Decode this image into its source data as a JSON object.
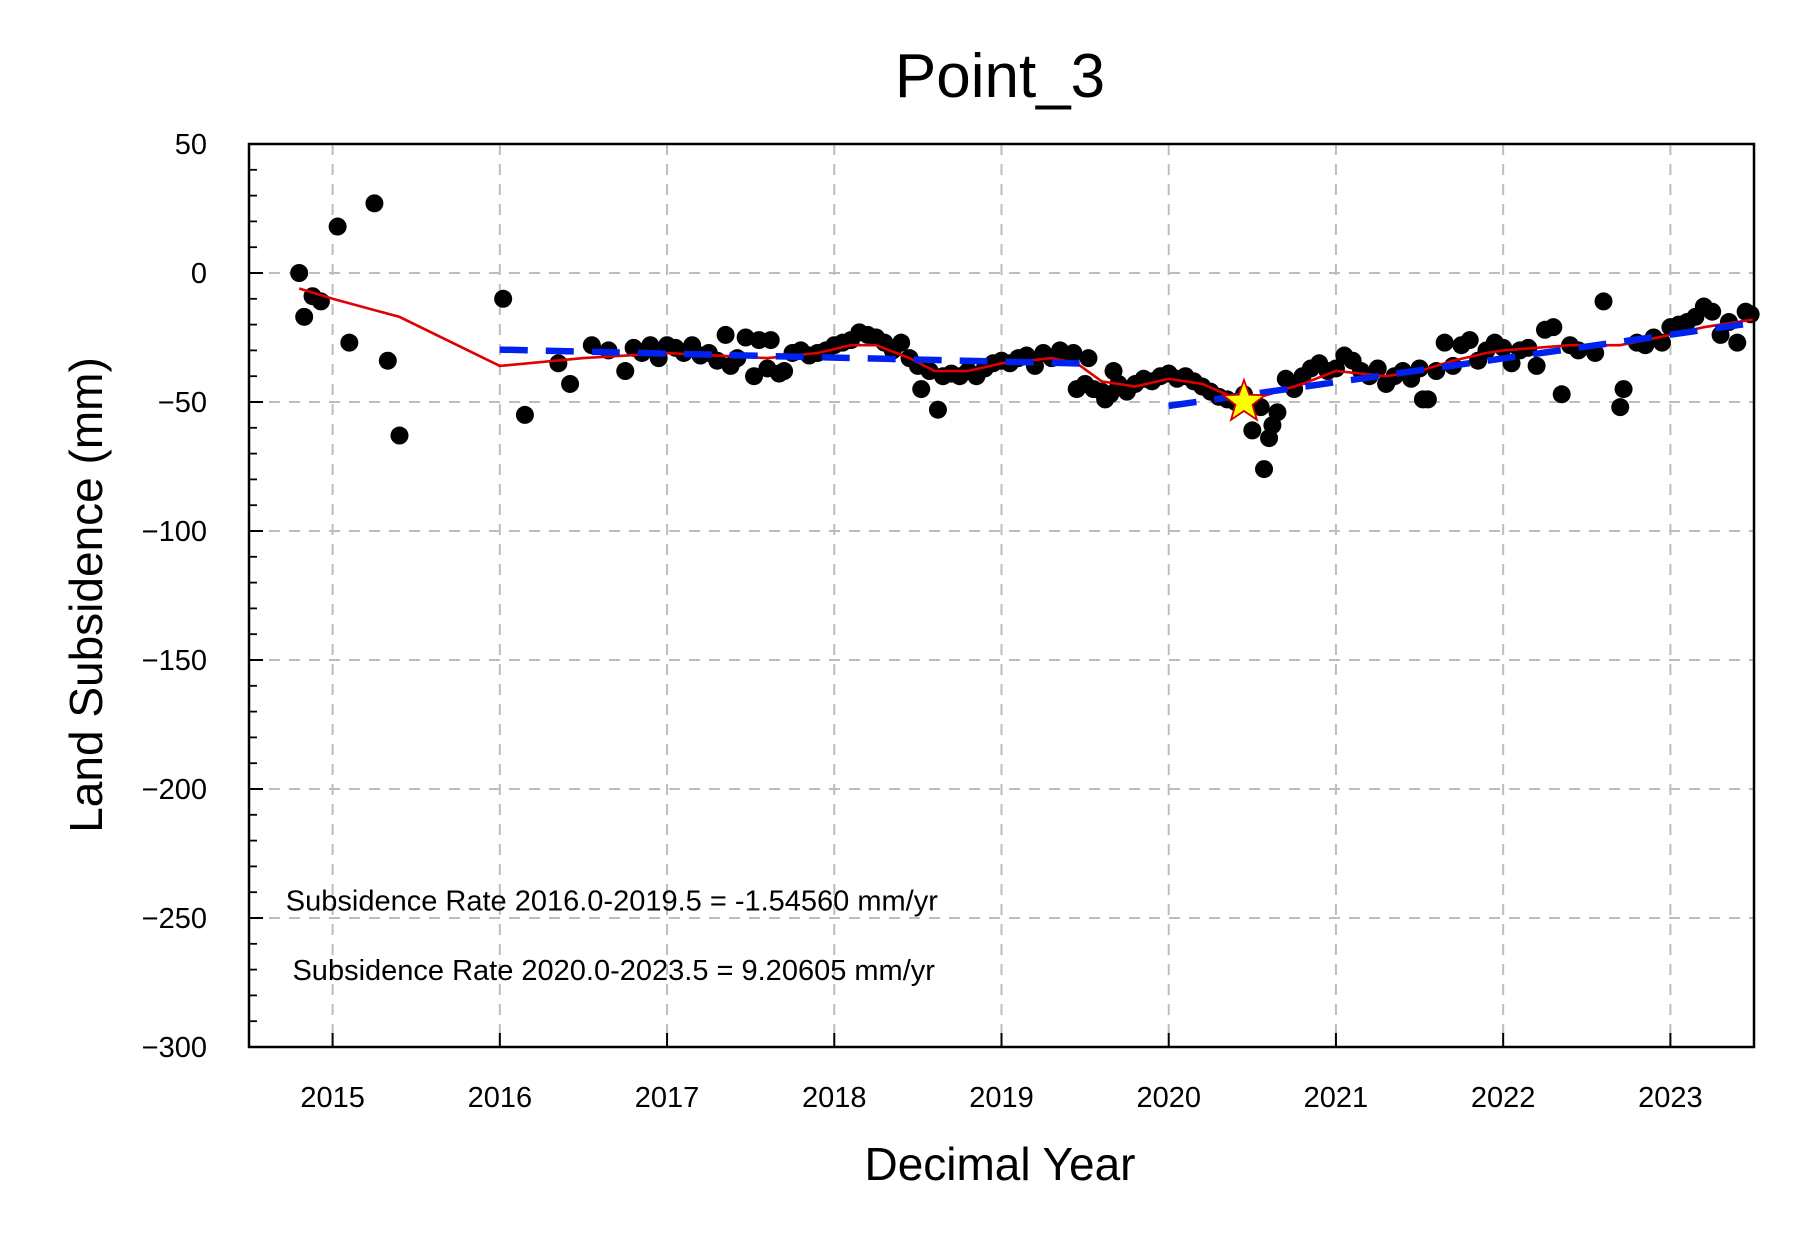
{
  "chart_data": {
    "type": "scatter",
    "title": "Point_3",
    "xlabel": "Decimal Year",
    "ylabel": "Land Subsidence (mm)",
    "xlim": [
      2014.5,
      2023.5
    ],
    "ylim": [
      -300,
      50
    ],
    "x_ticks": [
      {
        "value": 2015,
        "label": "2015"
      },
      {
        "value": 2016,
        "label": "2016"
      },
      {
        "value": 2017,
        "label": "2017"
      },
      {
        "value": 2018,
        "label": "2018"
      },
      {
        "value": 2019,
        "label": "2019"
      },
      {
        "value": 2020,
        "label": "2020"
      },
      {
        "value": 2021,
        "label": "2021"
      },
      {
        "value": 2022,
        "label": "2022"
      },
      {
        "value": 2023,
        "label": "2023"
      }
    ],
    "y_ticks": [
      {
        "value": 50,
        "label": "50"
      },
      {
        "value": 0,
        "label": "0"
      },
      {
        "value": -50,
        "label": "−50"
      },
      {
        "value": -100,
        "label": "−100"
      },
      {
        "value": -150,
        "label": "−150"
      },
      {
        "value": -200,
        "label": "−200"
      },
      {
        "value": -250,
        "label": "−250"
      },
      {
        "value": -300,
        "label": "−300"
      }
    ],
    "y_minor_step": 10,
    "grid": true,
    "colors": {
      "points": "#000000",
      "smooth": "#e00000",
      "trend": "#0022ee",
      "star_fill": "#ffff00",
      "star_stroke": "#d00000"
    },
    "series": [
      {
        "kind": "points",
        "points": [
          [
            2014.8,
            0
          ],
          [
            2014.83,
            -17
          ],
          [
            2014.88,
            -9
          ],
          [
            2014.93,
            -11
          ],
          [
            2015.03,
            18
          ],
          [
            2015.1,
            -27
          ],
          [
            2015.25,
            27
          ],
          [
            2015.33,
            -34
          ],
          [
            2015.4,
            -63
          ],
          [
            2016.02,
            -10
          ],
          [
            2016.15,
            -55
          ],
          [
            2016.35,
            -35
          ],
          [
            2016.42,
            -43
          ],
          [
            2016.55,
            -28
          ],
          [
            2016.65,
            -30
          ],
          [
            2016.75,
            -38
          ],
          [
            2016.8,
            -29
          ],
          [
            2016.85,
            -31
          ],
          [
            2016.9,
            -28
          ],
          [
            2016.95,
            -33
          ],
          [
            2017.0,
            -28
          ],
          [
            2017.05,
            -29
          ],
          [
            2017.1,
            -31
          ],
          [
            2017.15,
            -28
          ],
          [
            2017.2,
            -32
          ],
          [
            2017.25,
            -31
          ],
          [
            2017.3,
            -34
          ],
          [
            2017.35,
            -24
          ],
          [
            2017.38,
            -36
          ],
          [
            2017.42,
            -33
          ],
          [
            2017.47,
            -25
          ],
          [
            2017.52,
            -40
          ],
          [
            2017.55,
            -26
          ],
          [
            2017.6,
            -37
          ],
          [
            2017.62,
            -26
          ],
          [
            2017.67,
            -39
          ],
          [
            2017.7,
            -38
          ],
          [
            2017.75,
            -31
          ],
          [
            2017.8,
            -30
          ],
          [
            2017.85,
            -32
          ],
          [
            2017.9,
            -31
          ],
          [
            2017.95,
            -30
          ],
          [
            2018.0,
            -28
          ],
          [
            2018.05,
            -27
          ],
          [
            2018.1,
            -26
          ],
          [
            2018.15,
            -23
          ],
          [
            2018.2,
            -24
          ],
          [
            2018.25,
            -25
          ],
          [
            2018.3,
            -27
          ],
          [
            2018.35,
            -30
          ],
          [
            2018.4,
            -27
          ],
          [
            2018.45,
            -33
          ],
          [
            2018.5,
            -36
          ],
          [
            2018.52,
            -45
          ],
          [
            2018.57,
            -38
          ],
          [
            2018.62,
            -53
          ],
          [
            2018.65,
            -40
          ],
          [
            2018.7,
            -39
          ],
          [
            2018.75,
            -40
          ],
          [
            2018.8,
            -38
          ],
          [
            2018.85,
            -40
          ],
          [
            2018.9,
            -37
          ],
          [
            2018.95,
            -35
          ],
          [
            2019.0,
            -34
          ],
          [
            2019.05,
            -35
          ],
          [
            2019.1,
            -33
          ],
          [
            2019.15,
            -32
          ],
          [
            2019.2,
            -36
          ],
          [
            2019.25,
            -31
          ],
          [
            2019.3,
            -33
          ],
          [
            2019.35,
            -30
          ],
          [
            2019.4,
            -32
          ],
          [
            2019.43,
            -31
          ],
          [
            2019.45,
            -45
          ],
          [
            2019.5,
            -43
          ],
          [
            2019.52,
            -33
          ],
          [
            2019.55,
            -45
          ],
          [
            2019.6,
            -46
          ],
          [
            2019.62,
            -49
          ],
          [
            2019.65,
            -47
          ],
          [
            2019.67,
            -38
          ],
          [
            2019.7,
            -43
          ],
          [
            2019.75,
            -46
          ],
          [
            2019.8,
            -43
          ],
          [
            2019.85,
            -41
          ],
          [
            2019.9,
            -42
          ],
          [
            2019.95,
            -40
          ],
          [
            2020.0,
            -39
          ],
          [
            2020.05,
            -41
          ],
          [
            2020.1,
            -40
          ],
          [
            2020.15,
            -42
          ],
          [
            2020.2,
            -44
          ],
          [
            2020.25,
            -46
          ],
          [
            2020.3,
            -48
          ],
          [
            2020.35,
            -49
          ],
          [
            2020.4,
            -50
          ],
          [
            2020.45,
            -47
          ],
          [
            2020.5,
            -61
          ],
          [
            2020.55,
            -52
          ],
          [
            2020.57,
            -76
          ],
          [
            2020.6,
            -64
          ],
          [
            2020.62,
            -59
          ],
          [
            2020.65,
            -54
          ],
          [
            2020.7,
            -41
          ],
          [
            2020.75,
            -45
          ],
          [
            2020.8,
            -40
          ],
          [
            2020.85,
            -37
          ],
          [
            2020.9,
            -35
          ],
          [
            2020.95,
            -38
          ],
          [
            2021.0,
            -37
          ],
          [
            2021.05,
            -32
          ],
          [
            2021.1,
            -34
          ],
          [
            2021.15,
            -38
          ],
          [
            2021.2,
            -40
          ],
          [
            2021.25,
            -37
          ],
          [
            2021.3,
            -43
          ],
          [
            2021.35,
            -40
          ],
          [
            2021.4,
            -38
          ],
          [
            2021.45,
            -41
          ],
          [
            2021.5,
            -37
          ],
          [
            2021.52,
            -49
          ],
          [
            2021.55,
            -49
          ],
          [
            2021.6,
            -38
          ],
          [
            2021.65,
            -27
          ],
          [
            2021.7,
            -36
          ],
          [
            2021.75,
            -28
          ],
          [
            2021.8,
            -26
          ],
          [
            2021.85,
            -34
          ],
          [
            2021.9,
            -30
          ],
          [
            2021.95,
            -27
          ],
          [
            2022.0,
            -29
          ],
          [
            2022.05,
            -35
          ],
          [
            2022.1,
            -30
          ],
          [
            2022.15,
            -29
          ],
          [
            2022.2,
            -36
          ],
          [
            2022.25,
            -22
          ],
          [
            2022.3,
            -21
          ],
          [
            2022.35,
            -47
          ],
          [
            2022.4,
            -28
          ],
          [
            2022.45,
            -30
          ],
          [
            2022.55,
            -31
          ],
          [
            2022.6,
            -11
          ],
          [
            2022.7,
            -52
          ],
          [
            2022.72,
            -45
          ],
          [
            2022.8,
            -27
          ],
          [
            2022.85,
            -28
          ],
          [
            2022.9,
            -25
          ],
          [
            2022.95,
            -27
          ],
          [
            2023.0,
            -21
          ],
          [
            2023.05,
            -20
          ],
          [
            2023.1,
            -19
          ],
          [
            2023.15,
            -17
          ],
          [
            2023.2,
            -13
          ],
          [
            2023.25,
            -15
          ],
          [
            2023.3,
            -24
          ],
          [
            2023.35,
            -19
          ],
          [
            2023.4,
            -27
          ],
          [
            2023.45,
            -15
          ],
          [
            2023.48,
            -16
          ]
        ]
      },
      {
        "kind": "smooth",
        "points": [
          [
            2014.8,
            -6
          ],
          [
            2015.0,
            -10
          ],
          [
            2015.4,
            -17
          ],
          [
            2016.0,
            -36
          ],
          [
            2016.5,
            -33
          ],
          [
            2017.0,
            -31
          ],
          [
            2017.3,
            -32
          ],
          [
            2017.6,
            -33
          ],
          [
            2017.9,
            -31
          ],
          [
            2018.1,
            -28
          ],
          [
            2018.25,
            -28
          ],
          [
            2018.45,
            -33
          ],
          [
            2018.6,
            -38
          ],
          [
            2018.8,
            -38
          ],
          [
            2019.0,
            -35
          ],
          [
            2019.3,
            -33
          ],
          [
            2019.45,
            -35
          ],
          [
            2019.6,
            -42
          ],
          [
            2019.8,
            -44
          ],
          [
            2020.0,
            -41
          ],
          [
            2020.2,
            -43
          ],
          [
            2020.45,
            -50
          ],
          [
            2020.6,
            -47
          ],
          [
            2020.8,
            -43
          ],
          [
            2021.0,
            -38
          ],
          [
            2021.3,
            -40
          ],
          [
            2021.5,
            -38
          ],
          [
            2021.7,
            -34
          ],
          [
            2021.9,
            -31
          ],
          [
            2022.0,
            -30
          ],
          [
            2022.2,
            -29
          ],
          [
            2022.4,
            -28
          ],
          [
            2022.7,
            -28
          ],
          [
            2023.0,
            -24
          ],
          [
            2023.2,
            -21
          ],
          [
            2023.5,
            -18
          ]
        ]
      },
      {
        "kind": "trend",
        "points": [
          [
            2016.0,
            -29.7
          ],
          [
            2019.5,
            -35.1
          ]
        ]
      },
      {
        "kind": "trend",
        "points": [
          [
            2020.0,
            -51.5
          ],
          [
            2023.5,
            -19.3
          ]
        ]
      },
      {
        "kind": "star",
        "points": [
          [
            2020.45,
            -50
          ]
        ]
      }
    ],
    "annotations": [
      {
        "text": "Subsidence Rate 2016.0-2019.5 = -1.54560 mm/yr",
        "x": 2014.72,
        "y": -247
      },
      {
        "text": "Subsidence Rate 2020.0-2023.5 = 9.20605 mm/yr",
        "x": 2014.76,
        "y": -274
      }
    ]
  }
}
